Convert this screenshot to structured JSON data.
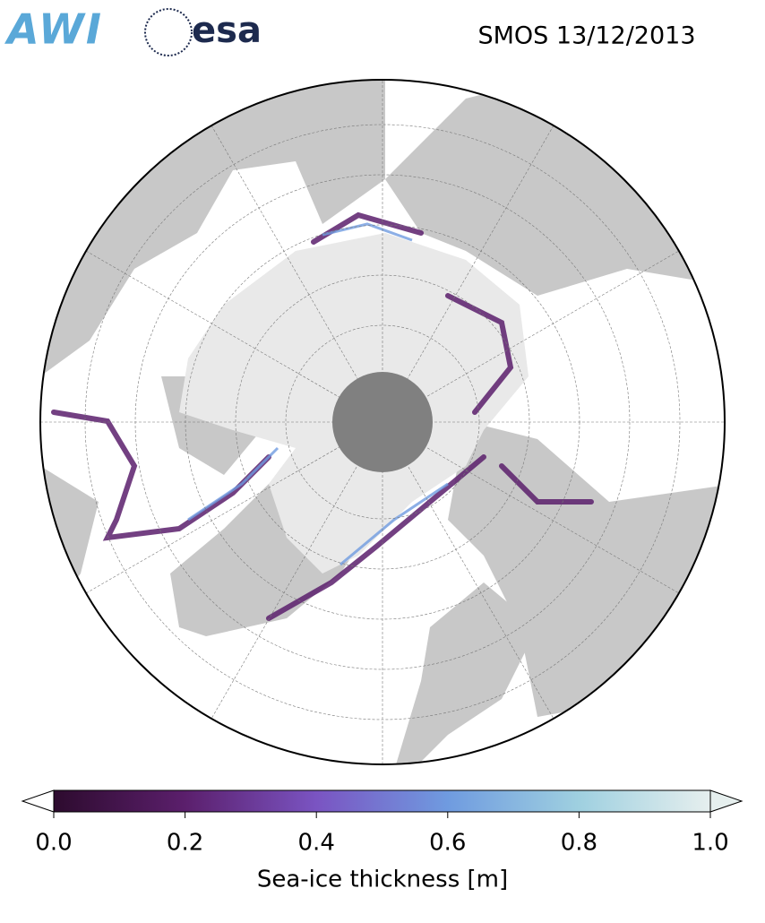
{
  "header": {
    "logo_left": "AWI",
    "logo_right": "esa",
    "title": "SMOS 13/12/2013"
  },
  "colorbar": {
    "label": "Sea-ice thickness [m]",
    "lim": [
      0,
      1
    ],
    "ticks": [
      {
        "value": 0,
        "label": "0.0"
      },
      {
        "value": 0.2,
        "label": "0.2"
      },
      {
        "value": 0.4,
        "label": "0.4"
      },
      {
        "value": 0.6,
        "label": "0.6"
      },
      {
        "value": 0.8,
        "label": "0.8"
      },
      {
        "value": 1,
        "label": "1.0"
      }
    ],
    "colors": [
      "#2d0b2e",
      "#5b1f6c",
      "#7a54c2",
      "#6f9be0",
      "#9fd0e0",
      "#e6efee"
    ]
  }
}
